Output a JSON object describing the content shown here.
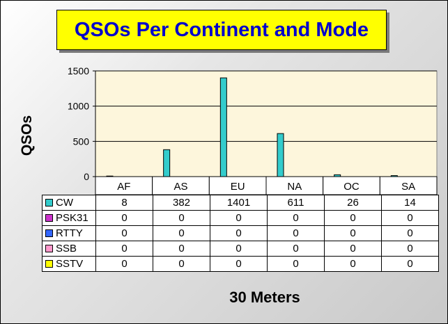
{
  "title": "QSOs Per Continent and Mode",
  "chart_data": {
    "type": "bar",
    "categories": [
      "AF",
      "AS",
      "EU",
      "NA",
      "OC",
      "SA"
    ],
    "series": [
      {
        "name": "CW",
        "color": "#33cccc",
        "values": [
          8,
          382,
          1401,
          611,
          26,
          14
        ]
      },
      {
        "name": "PSK31",
        "color": "#cc33cc",
        "values": [
          0,
          0,
          0,
          0,
          0,
          0
        ]
      },
      {
        "name": "RTTY",
        "color": "#3366ff",
        "values": [
          0,
          0,
          0,
          0,
          0,
          0
        ]
      },
      {
        "name": "SSB",
        "color": "#ff99cc",
        "values": [
          0,
          0,
          0,
          0,
          0,
          0
        ]
      },
      {
        "name": "SSTV",
        "color": "#ffff00",
        "values": [
          0,
          0,
          0,
          0,
          0,
          0
        ]
      }
    ],
    "ylabel": "QSOs",
    "xlabel": "30 Meters",
    "ylim": [
      0,
      1500
    ],
    "yticks": [
      "0",
      "500",
      "1000",
      "1500"
    ],
    "grid": true,
    "legend": "data table below chart"
  },
  "colors": {
    "plot_background": "#fdf6dc",
    "title_background": "#ffff00",
    "title_text": "#0000cc"
  }
}
